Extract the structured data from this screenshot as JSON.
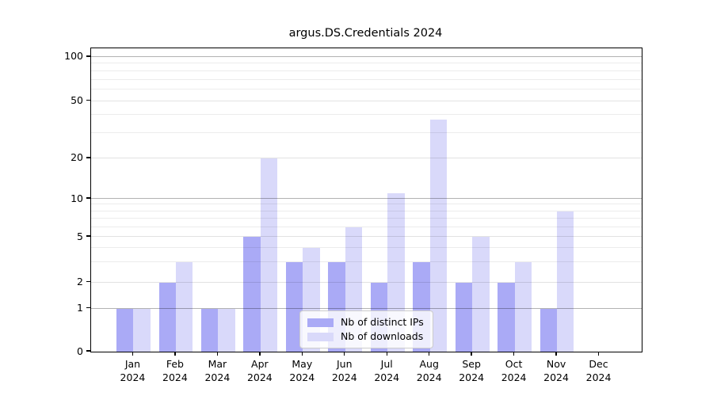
{
  "title": "argus.DS.Credentials 2024",
  "legend": {
    "items": [
      {
        "label": "Nb of distinct IPs",
        "color": "#aaaaf6"
      },
      {
        "label": "Nb of downloads",
        "color": "#d9d9fa"
      }
    ]
  },
  "chart_data": {
    "type": "bar",
    "title": "argus.DS.Credentials 2024",
    "categories": [
      "Jan",
      "Feb",
      "Mar",
      "Apr",
      "May",
      "Jun",
      "Jul",
      "Aug",
      "Sep",
      "Oct",
      "Nov",
      "Dec"
    ],
    "category_year": "2024",
    "series": [
      {
        "name": "Nb of distinct IPs",
        "color": "#aaaaf6",
        "values": [
          1,
          2,
          1,
          5,
          3,
          3,
          2,
          3,
          2,
          2,
          1,
          0
        ]
      },
      {
        "name": "Nb of downloads",
        "color": "#d9d9fa",
        "values": [
          1,
          3,
          1,
          20,
          4,
          6,
          11,
          37,
          5,
          3,
          8,
          0
        ]
      }
    ],
    "xlabel": "",
    "ylabel": "",
    "yscale": "log-like",
    "ylim": [
      0,
      115
    ],
    "y_ticks": [
      0,
      1,
      2,
      5,
      10,
      20,
      50,
      100
    ],
    "y_decade_ticks": [
      1,
      10,
      100
    ],
    "y_minor_gridlines": [
      3,
      4,
      6,
      7,
      8,
      9,
      30,
      40,
      60,
      70,
      80,
      90
    ],
    "grid": true,
    "legend_position": "lower center"
  }
}
